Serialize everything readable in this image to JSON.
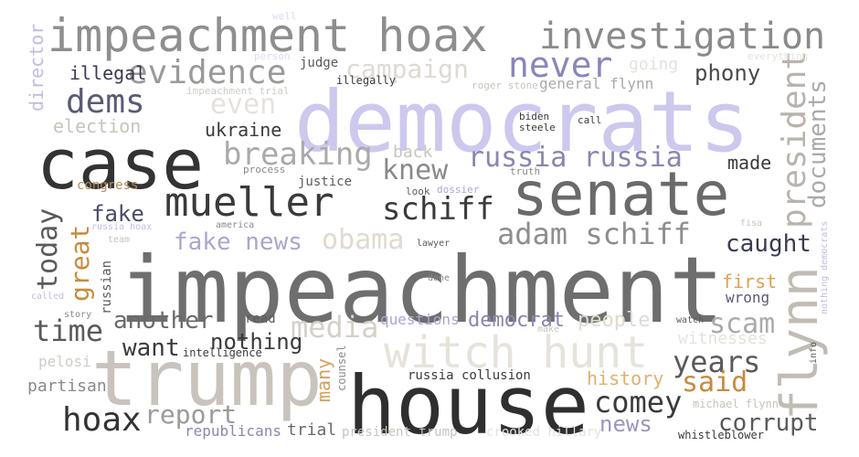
{
  "words": [
    {
      "text": "impeachment",
      "color": "#6e6e6e"
    },
    {
      "text": "democrats",
      "color": "#cdc8ee"
    },
    {
      "text": "house",
      "color": "#2f2f2f"
    },
    {
      "text": "trump",
      "color": "#c8c4bd"
    },
    {
      "text": "case",
      "color": "#333333"
    },
    {
      "text": "senate",
      "color": "#6a6a6a"
    },
    {
      "text": "impeachment hoax",
      "color": "#8e8e8e"
    },
    {
      "text": "investigation",
      "color": "#8a8a8a"
    },
    {
      "text": "mueller",
      "color": "#3a3a3a"
    },
    {
      "text": "witch hunt",
      "color": "#e6e2dc"
    },
    {
      "text": "flynn",
      "color": "#c0bcb5"
    },
    {
      "text": "president",
      "color": "#b8b4ad"
    },
    {
      "text": "evidence",
      "color": "#9a9a9a"
    },
    {
      "text": "schiff",
      "color": "#3a3a3a"
    },
    {
      "text": "breaking",
      "color": "#aaaaaa"
    },
    {
      "text": "adam schiff",
      "color": "#8e8e8e"
    },
    {
      "text": "never",
      "color": "#8a86b8"
    },
    {
      "text": "dems",
      "color": "#5a5a78"
    },
    {
      "text": "campaign",
      "color": "#dedad4"
    },
    {
      "text": "russia russia",
      "color": "#8a86b0"
    },
    {
      "text": "knew",
      "color": "#8a8a8a"
    },
    {
      "text": "hoax",
      "color": "#333333"
    },
    {
      "text": "comey",
      "color": "#3a3a3a"
    },
    {
      "text": "media",
      "color": "#d4d0ca"
    },
    {
      "text": "years",
      "color": "#5a5a5a"
    },
    {
      "text": "scam",
      "color": "#aaaaaa"
    },
    {
      "text": "today",
      "color": "#5a5a5a"
    },
    {
      "text": "report",
      "color": "#9a9a9a"
    },
    {
      "text": "time",
      "color": "#5a5a5a"
    },
    {
      "text": "fake news",
      "color": "#aaa6d0"
    },
    {
      "text": "obama",
      "color": "#dedad4"
    },
    {
      "text": "caught",
      "color": "#3a3a52"
    },
    {
      "text": "documents",
      "color": "#aaaaaa"
    },
    {
      "text": "another",
      "color": "#6a6a6a"
    },
    {
      "text": "want",
      "color": "#3a3a3a"
    },
    {
      "text": "nothing",
      "color": "#3a3a3a"
    },
    {
      "text": "great",
      "color": "#c98a3a"
    },
    {
      "text": "said",
      "color": "#c98a3a"
    },
    {
      "text": "news",
      "color": "#9a96c0"
    },
    {
      "text": "corrupt",
      "color": "#5a5a5a"
    },
    {
      "text": "phony",
      "color": "#4a4a4a"
    },
    {
      "text": "people",
      "color": "#dedad4"
    },
    {
      "text": "even",
      "color": "#e6e2dc"
    },
    {
      "text": "democrat",
      "color": "#8a86b0"
    },
    {
      "text": "fake",
      "color": "#4a4a6a"
    },
    {
      "text": "made",
      "color": "#3a3a3a"
    },
    {
      "text": "ukraine",
      "color": "#3a3a3a"
    },
    {
      "text": "history",
      "color": "#e0b070"
    },
    {
      "text": "illegal",
      "color": "#3a3a52"
    },
    {
      "text": "director",
      "color": "#c0bde0"
    },
    {
      "text": "first",
      "color": "#e0a050"
    },
    {
      "text": "many",
      "color": "#d4a060"
    },
    {
      "text": "election",
      "color": "#c8c4bd"
    },
    {
      "text": "witnesses",
      "color": "#e6e2dc"
    },
    {
      "text": "going",
      "color": "#e6e2dc"
    },
    {
      "text": "back",
      "color": "#c8c4bd"
    },
    {
      "text": "partisan",
      "color": "#8a8a8a"
    },
    {
      "text": "questions",
      "color": "#aaa6d0"
    },
    {
      "text": "wrong",
      "color": "#5a5a78"
    },
    {
      "text": "trial",
      "color": "#6a6a6a"
    },
    {
      "text": "republicans",
      "color": "#8a86b0"
    },
    {
      "text": "general flynn",
      "color": "#aaaaaa"
    },
    {
      "text": "pelosi",
      "color": "#d0ccc6"
    },
    {
      "text": "congress",
      "color": "#b08a5a"
    },
    {
      "text": "justice",
      "color": "#5a5a5a"
    },
    {
      "text": "judge",
      "color": "#5a5a5a"
    },
    {
      "text": "read",
      "color": "#5a5a5a"
    },
    {
      "text": "russian",
      "color": "#5a5a5a"
    },
    {
      "text": "russia collusion",
      "color": "#3a3a3a"
    },
    {
      "text": "president trump",
      "color": "#c8c4bd"
    },
    {
      "text": "crooked hillary",
      "color": "#e6e2dc"
    },
    {
      "text": "whistleblower",
      "color": "#3a3a3a"
    },
    {
      "text": "michael flynn",
      "color": "#c8c4bd"
    },
    {
      "text": "counsel",
      "color": "#8a8a8a"
    },
    {
      "text": "intelligence",
      "color": "#3a3a3a"
    },
    {
      "text": "illegally",
      "color": "#3a3a3a"
    },
    {
      "text": "impeachment trial",
      "color": "#d0ccc6"
    },
    {
      "text": "person",
      "color": "#dcdcec"
    },
    {
      "text": "well",
      "color": "#dcdcec"
    },
    {
      "text": "roger stone",
      "color": "#c8c4bd"
    },
    {
      "text": "biden",
      "color": "#3a3a3a"
    },
    {
      "text": "steele",
      "color": "#3a3a3a"
    },
    {
      "text": "call",
      "color": "#3a3a3a"
    },
    {
      "text": "truth",
      "color": "#8a8a8a"
    },
    {
      "text": "look",
      "color": "#5a5a5a"
    },
    {
      "text": "dossier",
      "color": "#aaa6d0"
    },
    {
      "text": "process",
      "color": "#8a8a8a"
    },
    {
      "text": "america",
      "color": "#8a8a8a"
    },
    {
      "text": "russia hoax",
      "color": "#c0bde0"
    },
    {
      "text": "team",
      "color": "#c8c4bd"
    },
    {
      "text": "lawyer",
      "color": "#5a5a5a"
    },
    {
      "text": "done",
      "color": "#8a8a8a"
    },
    {
      "text": "fisa",
      "color": "#c8c4bd"
    },
    {
      "text": "called",
      "color": "#c0bde0"
    },
    {
      "text": "story",
      "color": "#8a8a8a"
    },
    {
      "text": "watch",
      "color": "#5a5a5a"
    },
    {
      "text": "make",
      "color": "#c8c4bd"
    },
    {
      "text": "info",
      "color": "#5a5a5a"
    },
    {
      "text": "nothing democrats",
      "color": "#c0bde0"
    },
    {
      "text": "everything",
      "color": "#e6e2dc"
    }
  ]
}
